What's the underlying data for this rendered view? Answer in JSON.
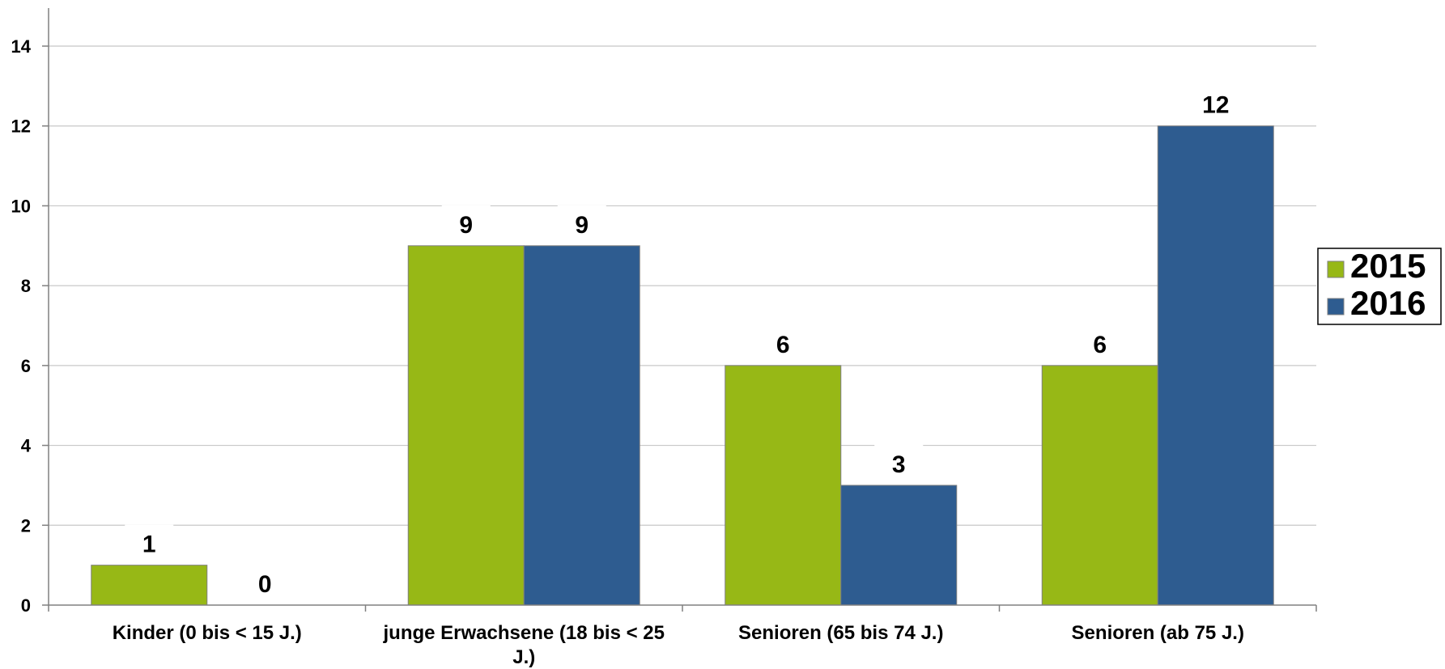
{
  "chart_data": {
    "type": "bar",
    "categories": [
      [
        "Kinder (0 bis < 15 J.)"
      ],
      [
        "junge Erwachsene (18 bis < 25",
        "J.)"
      ],
      [
        "Senioren (65 bis 74 J.)"
      ],
      [
        "Senioren (ab 75 J.)"
      ]
    ],
    "series": [
      {
        "name": "2015",
        "values": [
          1,
          9,
          6,
          6
        ],
        "color": "#97b816"
      },
      {
        "name": "2016",
        "values": [
          0,
          9,
          3,
          12
        ],
        "color": "#2e5c90"
      }
    ],
    "ylim": [
      0,
      14
    ],
    "yticks": [
      0,
      2,
      4,
      6,
      8,
      10,
      12,
      14
    ],
    "grid": true,
    "legend": "right"
  }
}
